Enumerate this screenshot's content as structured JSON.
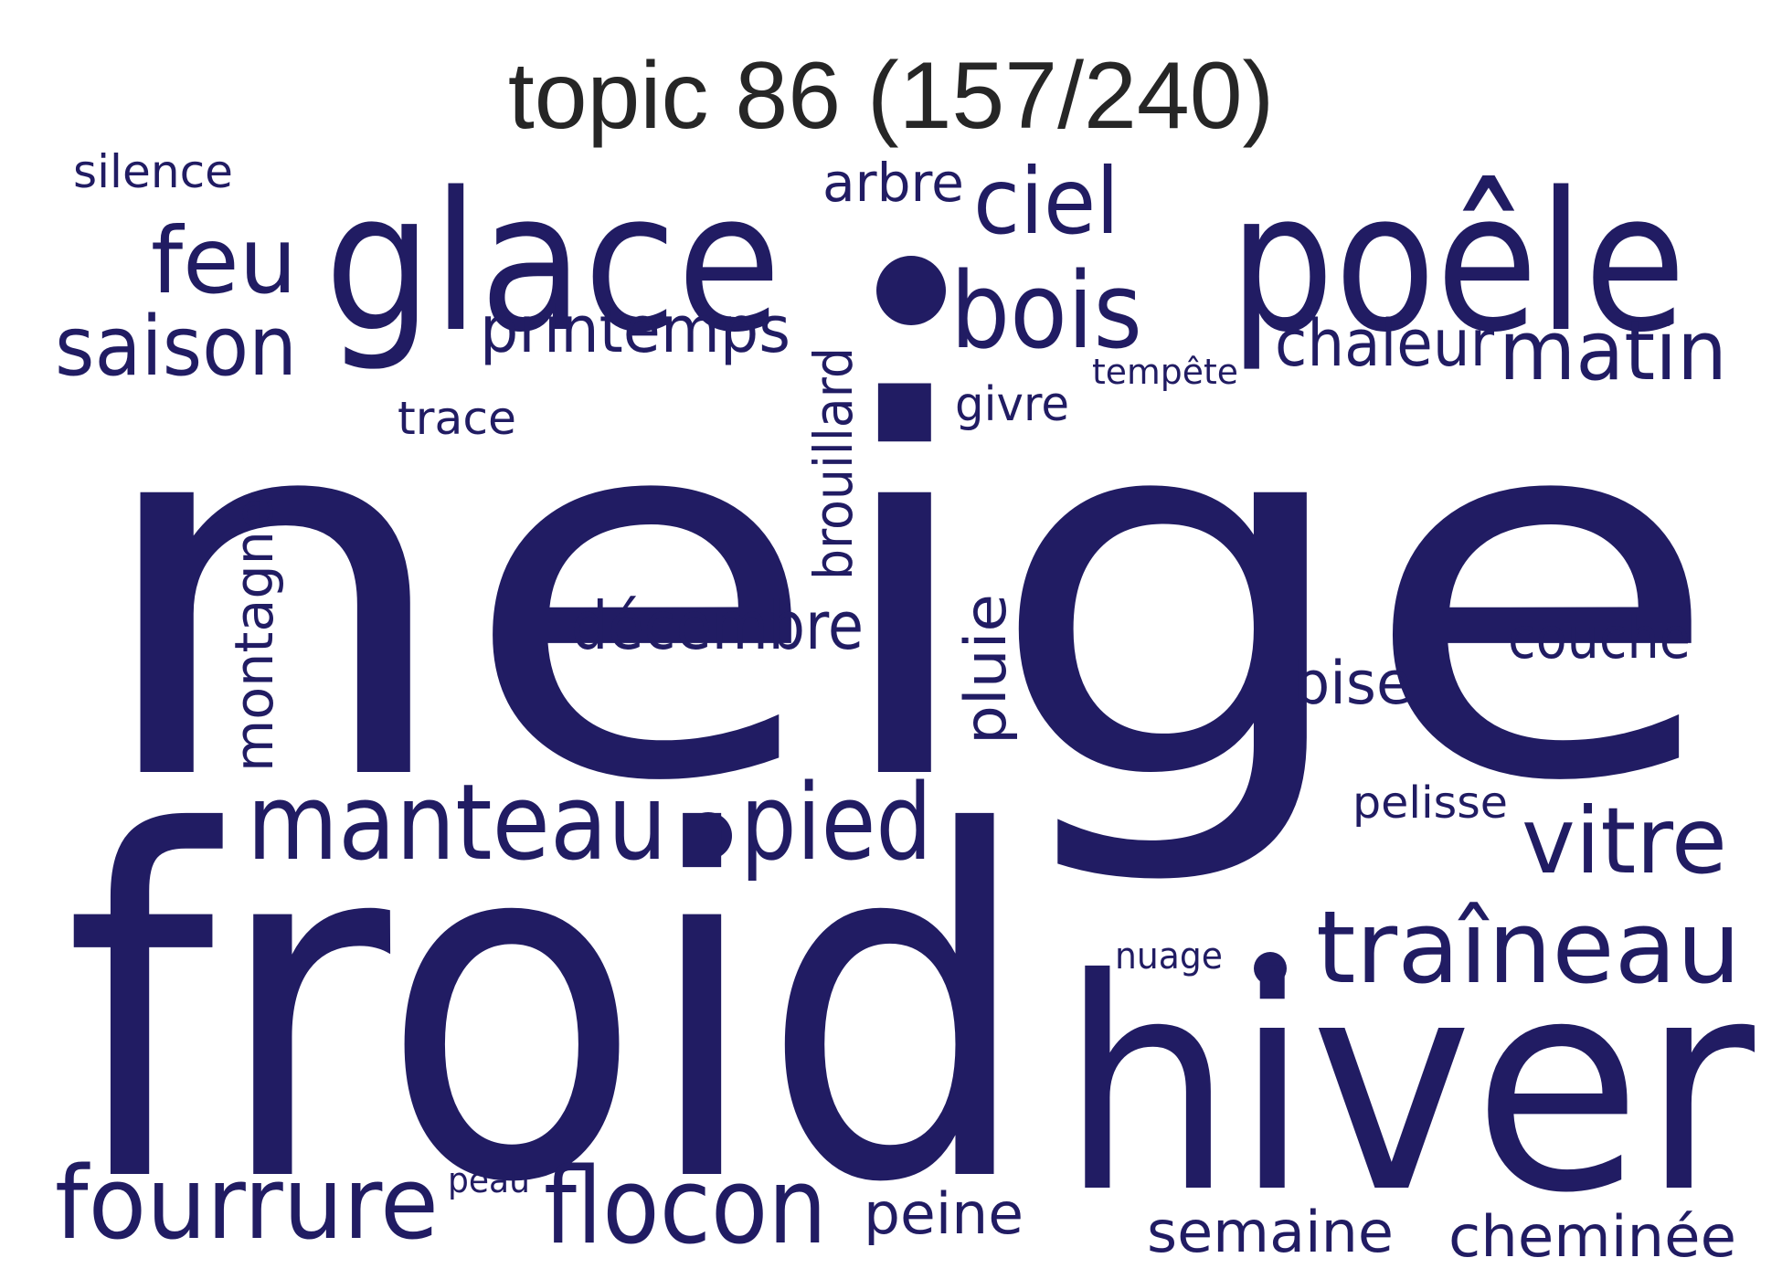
{
  "title": "topic 86 (157/240)",
  "color": "#211c63",
  "words": [
    {
      "text": "neige",
      "rotated": false
    },
    {
      "text": "froid",
      "rotated": false
    },
    {
      "text": "hiver",
      "rotated": false
    },
    {
      "text": "glace",
      "rotated": false
    },
    {
      "text": "poêle",
      "rotated": false
    },
    {
      "text": "bois",
      "rotated": false
    },
    {
      "text": "manteau",
      "rotated": false
    },
    {
      "text": "pied",
      "rotated": false
    },
    {
      "text": "traîneau",
      "rotated": false
    },
    {
      "text": "fourrure",
      "rotated": false
    },
    {
      "text": "flocon",
      "rotated": false
    },
    {
      "text": "ciel",
      "rotated": false
    },
    {
      "text": "feu",
      "rotated": false
    },
    {
      "text": "vitre",
      "rotated": false
    },
    {
      "text": "matin",
      "rotated": false
    },
    {
      "text": "saison",
      "rotated": false
    },
    {
      "text": "printemps",
      "rotated": false
    },
    {
      "text": "chaleur",
      "rotated": false
    },
    {
      "text": "décembre",
      "rotated": false
    },
    {
      "text": "montagne",
      "rotated": true
    },
    {
      "text": "brouillard",
      "rotated": true
    },
    {
      "text": "pluie",
      "rotated": true
    },
    {
      "text": "couche",
      "rotated": false
    },
    {
      "text": "bise",
      "rotated": false
    },
    {
      "text": "semaine",
      "rotated": false
    },
    {
      "text": "cheminée",
      "rotated": false
    },
    {
      "text": "arbre",
      "rotated": false
    },
    {
      "text": "peine",
      "rotated": false
    },
    {
      "text": "silence",
      "rotated": false
    },
    {
      "text": "trace",
      "rotated": false
    },
    {
      "text": "givre",
      "rotated": false
    },
    {
      "text": "pelisse",
      "rotated": false
    },
    {
      "text": "tempête",
      "rotated": false
    },
    {
      "text": "nuage",
      "rotated": false
    },
    {
      "text": "peau",
      "rotated": false
    }
  ]
}
